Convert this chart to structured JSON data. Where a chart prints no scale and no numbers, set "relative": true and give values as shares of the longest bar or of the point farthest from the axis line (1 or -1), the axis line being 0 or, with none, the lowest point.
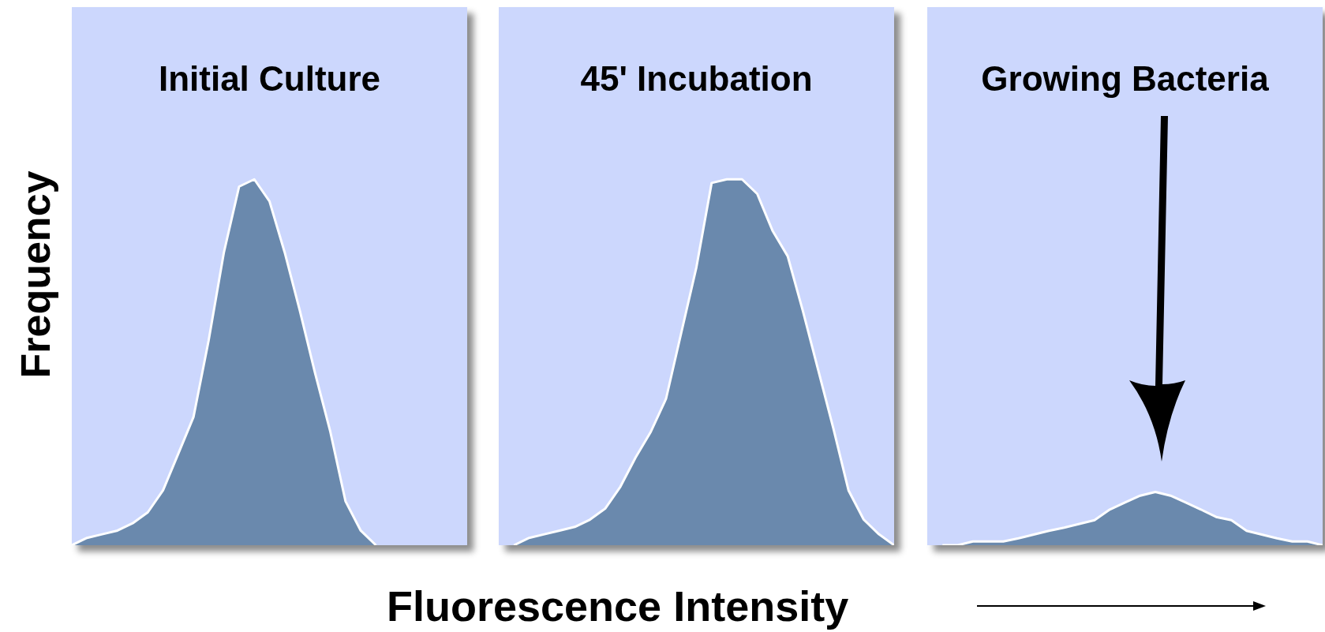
{
  "chart_data": [
    {
      "type": "area",
      "title": "Initial Culture",
      "ylabel": "Frequency",
      "relative": true,
      "tick_labels": false,
      "color": "#6a89ad",
      "categories": [
        null,
        null,
        null,
        null,
        null,
        null,
        null,
        null,
        null,
        null,
        null,
        null,
        null,
        null,
        null,
        null,
        null,
        null,
        null,
        null,
        null,
        null,
        null,
        null,
        null,
        null,
        null
      ],
      "values": [
        0,
        0.02,
        0.03,
        0.04,
        0.06,
        0.09,
        0.15,
        0.25,
        0.35,
        0.56,
        0.8,
        0.98,
        1.0,
        0.94,
        0.8,
        0.64,
        0.47,
        0.31,
        0.12,
        0.04,
        0,
        null,
        null,
        null,
        null,
        null,
        null
      ]
    },
    {
      "type": "area",
      "title": "45' Incubation",
      "xlabel": "Fluorescence Intensity",
      "relative": true,
      "tick_labels": false,
      "color": "#6a89ad",
      "categories": [
        null,
        null,
        null,
        null,
        null,
        null,
        null,
        null,
        null,
        null,
        null,
        null,
        null,
        null,
        null,
        null,
        null,
        null,
        null,
        null,
        null,
        null,
        null,
        null,
        null,
        null,
        null
      ],
      "values": [
        null,
        0,
        0.02,
        0.03,
        0.04,
        0.05,
        0.07,
        0.1,
        0.16,
        0.24,
        0.31,
        0.4,
        0.58,
        0.76,
        0.99,
        1.0,
        1.0,
        0.96,
        0.86,
        0.79,
        0.64,
        0.48,
        0.32,
        0.15,
        0.07,
        0.03,
        0
      ]
    },
    {
      "type": "area",
      "title": "Growing Bacteria",
      "relative": true,
      "tick_labels": false,
      "color": "#6a89ad",
      "categories": [
        null,
        null,
        null,
        null,
        null,
        null,
        null,
        null,
        null,
        null,
        null,
        null,
        null,
        null,
        null,
        null,
        null,
        null,
        null,
        null,
        null,
        null,
        null,
        null,
        null,
        null,
        null
      ],
      "values": [
        null,
        0,
        0,
        0.07,
        0.07,
        0.07,
        0.13,
        0.2,
        0.27,
        0.33,
        0.4,
        0.47,
        0.67,
        0.8,
        0.93,
        1.0,
        0.93,
        0.8,
        0.67,
        0.53,
        0.47,
        0.27,
        0.2,
        0.13,
        0.07,
        0.07,
        0
      ]
    }
  ]
}
